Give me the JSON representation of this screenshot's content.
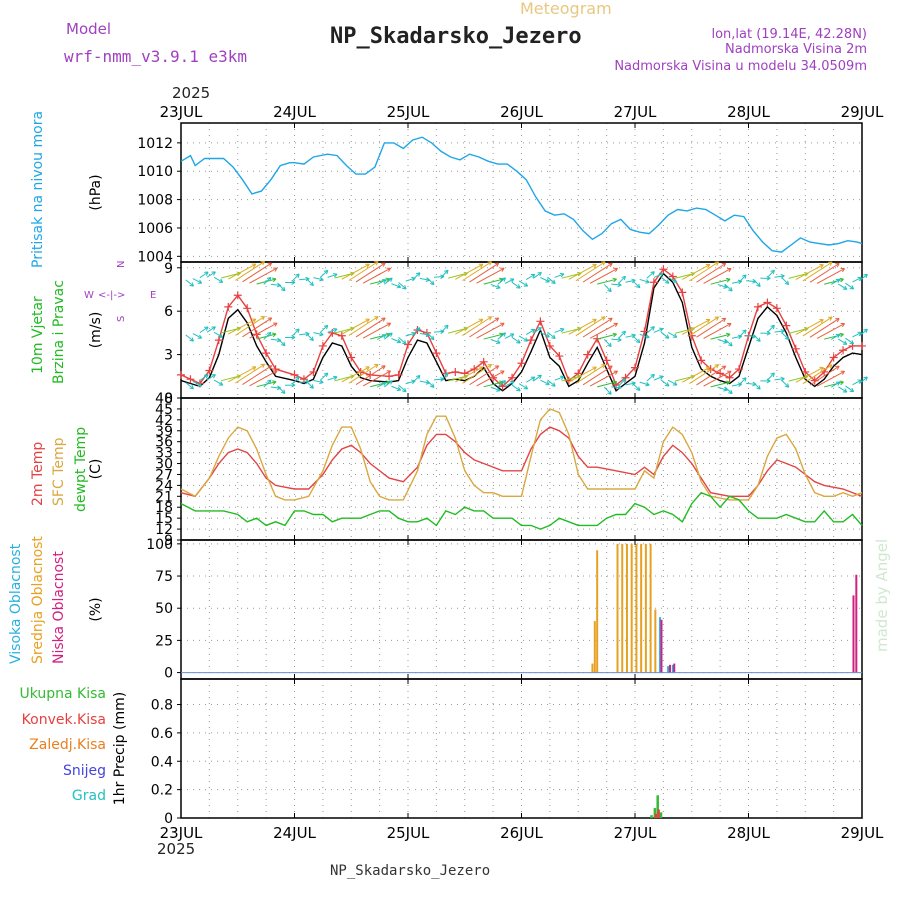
{
  "header": {
    "model_label": "Model",
    "model_name": "wrf-nmm_v3.9.1 e3km",
    "meteogram_label": "Meteogram",
    "station": "NP_Skadarsko_Jezero",
    "lonlat": "lon,lat (19.14E, 42.28N)",
    "elevation": "Nadmorska Visina 2m",
    "model_elevation": "Nadmorska Visina u modelu 34.0509m",
    "footer_station": "NP_Skadarsko_Jezero",
    "watermark": "made by Angel",
    "year": "2025"
  },
  "colors": {
    "pressure": "#1ea6e8",
    "temp2m": "#e24444",
    "sfc": "#d9a840",
    "dewpt": "#22bb22",
    "high_cloud": "#2ab0e0",
    "mid_cloud": "#e8a020",
    "low_cloud": "#d02080",
    "precip_total": "#33bb33",
    "precip_conv": "#e84040",
    "snow": "#4444dd",
    "grad": "#22c0c0"
  },
  "chart_data": [
    {
      "id": "pressure",
      "type": "line",
      "title": "Pritisak na nivou mora",
      "ylabel": "(hPa)",
      "ylim": [
        1003.6,
        1013.4
      ],
      "yticks": [
        1004,
        1006,
        1008,
        1010,
        1012
      ],
      "xlim": [
        0,
        144
      ],
      "series": [
        {
          "name": "Pritisak na nivou mora",
          "color": "#1ea6e8",
          "x": [
            0,
            2,
            3,
            5,
            7,
            9,
            11,
            13,
            15,
            17,
            19,
            21,
            23,
            24,
            26,
            28,
            31,
            33,
            35,
            37,
            39,
            41,
            43,
            45,
            47,
            49,
            51,
            53,
            55,
            57,
            59,
            61,
            63,
            65,
            67,
            69,
            71,
            73,
            75,
            77,
            79,
            81,
            83,
            85,
            87,
            89,
            91,
            93,
            95,
            97,
            99,
            101,
            103,
            105,
            107,
            109,
            111,
            113,
            115,
            117,
            119,
            121,
            123,
            125,
            127,
            129,
            131,
            133,
            135,
            137,
            139,
            141,
            143,
            144
          ],
          "y": [
            1010.7,
            1011.1,
            1010.4,
            1010.9,
            1010.9,
            1010.9,
            1010.3,
            1009.4,
            1008.4,
            1008.6,
            1009.4,
            1010.4,
            1010.6,
            1010.6,
            1010.5,
            1011.0,
            1011.2,
            1011.1,
            1010.4,
            1009.8,
            1009.8,
            1010.3,
            1012.0,
            1012.0,
            1011.6,
            1012.2,
            1012.4,
            1012.0,
            1011.4,
            1011.0,
            1010.8,
            1011.2,
            1011.0,
            1010.7,
            1010.5,
            1010.5,
            1010.0,
            1009.4,
            1008.2,
            1007.2,
            1006.9,
            1007.0,
            1006.6,
            1005.8,
            1005.2,
            1005.6,
            1006.3,
            1006.6,
            1005.9,
            1005.7,
            1005.6,
            1006.2,
            1006.9,
            1007.3,
            1007.2,
            1007.4,
            1007.3,
            1006.9,
            1006.5,
            1006.9,
            1006.8,
            1005.8,
            1005.0,
            1004.4,
            1004.3,
            1004.8,
            1005.3,
            1005.0,
            1004.9,
            1004.8,
            1004.9,
            1005.1,
            1005.0,
            1004.9
          ]
        }
      ]
    },
    {
      "id": "wind",
      "type": "line",
      "title": "10m Vjetar Brzina i Pravac",
      "ylabel": "(m/s)",
      "ylim": [
        0,
        9.4
      ],
      "yticks": [
        0,
        3,
        6,
        9
      ],
      "xlim": [
        0,
        144
      ],
      "direction_legend": [
        "W",
        "E",
        "N",
        "S"
      ],
      "series": [
        {
          "name": "wind speed",
          "color": "#000000",
          "x": [
            0,
            2,
            4,
            6,
            8,
            10,
            12,
            14,
            16,
            18,
            20,
            24,
            26,
            28,
            30,
            32,
            34,
            36,
            38,
            40,
            44,
            46,
            48,
            50,
            52,
            54,
            56,
            58,
            60,
            62,
            64,
            66,
            68,
            70,
            72,
            74,
            76,
            78,
            80,
            82,
            84,
            86,
            88,
            90,
            92,
            94,
            96,
            98,
            100,
            102,
            104,
            106,
            108,
            110,
            112,
            114,
            116,
            118,
            120,
            122,
            124,
            126,
            128,
            130,
            132,
            134,
            136,
            138,
            140,
            142,
            144
          ],
          "y": [
            1.2,
            1.0,
            0.8,
            1.4,
            3.0,
            5.5,
            6.1,
            5.2,
            3.6,
            2.5,
            1.5,
            1.2,
            1.0,
            1.3,
            2.8,
            3.8,
            3.6,
            2.2,
            1.4,
            1.2,
            1.1,
            1.2,
            2.8,
            4.0,
            3.8,
            2.5,
            1.2,
            1.3,
            1.2,
            1.5,
            2.1,
            1.0,
            0.5,
            1.0,
            1.8,
            3.2,
            4.7,
            2.8,
            2.2,
            0.8,
            1.2,
            2.4,
            3.5,
            2.0,
            0.5,
            1.0,
            1.5,
            3.8,
            7.6,
            8.6,
            8.0,
            6.6,
            3.5,
            2.0,
            1.5,
            1.2,
            1.0,
            1.5,
            3.5,
            5.5,
            6.3,
            5.7,
            4.5,
            2.8,
            1.3,
            0.8,
            1.3,
            2.2,
            2.8,
            3.1,
            3.0
          ]
        },
        {
          "name": "gust",
          "color": "#e84040",
          "x": [
            0,
            2,
            4,
            6,
            8,
            10,
            12,
            14,
            16,
            18,
            20,
            24,
            26,
            28,
            30,
            32,
            34,
            36,
            38,
            40,
            44,
            46,
            48,
            50,
            52,
            54,
            56,
            58,
            60,
            62,
            64,
            66,
            68,
            70,
            72,
            74,
            76,
            78,
            80,
            82,
            84,
            86,
            88,
            90,
            92,
            94,
            96,
            98,
            100,
            102,
            104,
            106,
            108,
            110,
            112,
            114,
            116,
            118,
            120,
            122,
            124,
            126,
            128,
            130,
            132,
            134,
            136,
            138,
            140,
            142,
            144
          ],
          "y": [
            1.6,
            1.3,
            1.0,
            1.9,
            4.0,
            6.3,
            7.1,
            6.2,
            4.4,
            3.1,
            2.0,
            1.6,
            1.3,
            1.8,
            3.6,
            4.5,
            4.3,
            2.8,
            1.8,
            1.6,
            1.5,
            1.6,
            3.7,
            4.7,
            4.5,
            3.1,
            1.7,
            1.8,
            1.7,
            2.0,
            2.5,
            1.4,
            0.8,
            1.4,
            2.4,
            4.0,
            5.3,
            3.6,
            2.9,
            1.2,
            1.7,
            3.0,
            4.1,
            2.6,
            0.9,
            1.4,
            2.1,
            4.6,
            8.0,
            8.9,
            8.4,
            7.3,
            4.3,
            2.6,
            2.0,
            1.7,
            1.4,
            2.0,
            4.3,
            6.3,
            6.6,
            6.2,
            5.0,
            3.4,
            1.8,
            1.2,
            1.8,
            2.8,
            3.3,
            3.6,
            3.6
          ]
        }
      ]
    },
    {
      "id": "temperature",
      "type": "line",
      "title": "2m Temp / SFC Temp / dewpt Temp",
      "ylabel": "(C)",
      "ylim": [
        9,
        48
      ],
      "yticks": [
        9,
        12,
        15,
        18,
        21,
        24,
        27,
        30,
        33,
        36,
        39,
        42,
        45,
        48
      ],
      "xlim": [
        0,
        144
      ],
      "series": [
        {
          "name": "2m Temp",
          "color": "#e24444",
          "x": [
            0,
            3,
            6,
            8,
            10,
            12,
            14,
            16,
            18,
            20,
            24,
            27,
            30,
            32,
            34,
            36,
            38,
            40,
            44,
            47,
            50,
            52,
            54,
            56,
            58,
            60,
            62,
            64,
            68,
            72,
            74,
            76,
            78,
            80,
            82,
            84,
            86,
            88,
            92,
            96,
            98,
            100,
            102,
            104,
            106,
            108,
            110,
            112,
            116,
            120,
            122,
            124,
            126,
            128,
            130,
            132,
            134,
            136,
            140,
            144
          ],
          "y": [
            22,
            21,
            26,
            30,
            33,
            34,
            33,
            30,
            26,
            24,
            23,
            23,
            27,
            31,
            34,
            35,
            33,
            30,
            26,
            25,
            29,
            35,
            38,
            38,
            36,
            33,
            31,
            30,
            28,
            28,
            34,
            38,
            40,
            39,
            37,
            32,
            29,
            29,
            28,
            27,
            29,
            27,
            32,
            35,
            33,
            30,
            26,
            22,
            21,
            21,
            24,
            28,
            31,
            30,
            29,
            27,
            25,
            24,
            23,
            21
          ]
        },
        {
          "name": "SFC Temp",
          "color": "#d9a840",
          "x": [
            0,
            3,
            6,
            8,
            10,
            12,
            14,
            16,
            18,
            20,
            22,
            24,
            27,
            30,
            32,
            34,
            36,
            38,
            40,
            42,
            44,
            47,
            50,
            52,
            54,
            56,
            58,
            60,
            62,
            64,
            66,
            68,
            72,
            74,
            76,
            78,
            80,
            82,
            84,
            86,
            88,
            90,
            92,
            96,
            98,
            100,
            102,
            104,
            106,
            108,
            110,
            112,
            116,
            120,
            122,
            124,
            126,
            128,
            130,
            132,
            134,
            136,
            138,
            140,
            142,
            144
          ],
          "y": [
            23,
            21,
            26,
            32,
            37,
            40,
            39,
            34,
            27,
            21,
            20,
            20,
            21,
            28,
            35,
            40,
            40,
            34,
            25,
            21,
            20,
            20,
            28,
            38,
            43,
            43,
            37,
            28,
            24,
            22,
            22,
            21,
            21,
            32,
            42,
            45,
            44,
            38,
            27,
            23,
            23,
            23,
            23,
            23,
            28,
            26,
            36,
            40,
            38,
            33,
            25,
            21,
            20,
            20,
            24,
            32,
            37,
            38,
            34,
            27,
            22,
            21,
            21,
            22,
            21,
            22
          ]
        },
        {
          "name": "dewpt Temp",
          "color": "#22bb22",
          "x": [
            0,
            3,
            6,
            9,
            12,
            14,
            16,
            18,
            20,
            22,
            24,
            26,
            28,
            30,
            32,
            34,
            36,
            38,
            40,
            42,
            44,
            46,
            48,
            50,
            52,
            54,
            56,
            58,
            60,
            62,
            64,
            66,
            68,
            70,
            72,
            74,
            76,
            78,
            80,
            82,
            84,
            86,
            88,
            90,
            92,
            94,
            96,
            98,
            100,
            102,
            104,
            106,
            108,
            110,
            112,
            114,
            116,
            118,
            120,
            122,
            124,
            126,
            128,
            130,
            132,
            134,
            136,
            138,
            140,
            142,
            144
          ],
          "y": [
            19,
            17,
            17,
            17,
            16,
            14,
            15,
            13,
            14,
            13,
            17,
            17,
            16,
            16,
            14,
            15,
            15,
            15,
            16,
            17,
            17,
            15,
            14,
            14,
            15,
            13,
            17,
            16,
            18,
            17,
            17,
            15,
            15,
            15,
            13,
            13,
            12,
            13,
            15,
            14,
            13,
            13,
            13,
            15,
            16,
            16,
            19,
            18,
            16,
            17,
            16,
            14,
            19,
            22,
            21,
            18,
            21,
            20,
            17,
            15,
            15,
            15,
            16,
            15,
            14,
            14,
            17,
            14,
            14,
            16,
            13
          ]
        }
      ]
    },
    {
      "id": "cloud",
      "type": "bar",
      "title": "Visoka Oblacnost / Srednja Oblacnost / Niska Oblacnost",
      "ylabel": "(%)",
      "ylim": [
        -5,
        103
      ],
      "yticks": [
        0,
        25,
        50,
        75,
        100
      ],
      "xlim": [
        0,
        144
      ],
      "series": [
        {
          "name": "Srednja Oblacnost",
          "color": "#e8a020",
          "x": [
            87.0,
            87.5,
            88.0,
            92.3,
            93.3,
            94.3,
            95.3,
            96.3,
            97.3,
            98.3,
            99.3,
            100.3
          ],
          "y": [
            7,
            40,
            95,
            100,
            100,
            100,
            100,
            100,
            100,
            100,
            100,
            49
          ]
        },
        {
          "name": "Visoka Oblacnost",
          "color": "#2ab0e0",
          "x": [
            101.3,
            103.0,
            104.0
          ],
          "y": [
            43,
            5,
            6
          ]
        },
        {
          "name": "Niska Oblacnost",
          "color": "#d02080",
          "x": [
            101.6,
            103.4,
            104.3,
            142.2,
            142.8
          ],
          "y": [
            41,
            6,
            7,
            60,
            76
          ]
        }
      ]
    },
    {
      "id": "precip",
      "type": "bar",
      "title": "1hr Precip",
      "ylabel": "1hr Precip (mm)",
      "ylim": [
        0,
        0.98
      ],
      "yticks": [
        0,
        0.2,
        0.4,
        0.6,
        0.8
      ],
      "xlim": [
        0,
        144
      ],
      "series": [
        {
          "name": "Ukupna Kisa",
          "color": "#33bb33",
          "x": [
            99.5,
            100.2,
            100.8,
            101.5
          ],
          "y": [
            0.02,
            0.07,
            0.16,
            0.04
          ]
        },
        {
          "name": "Konvek.Kisa",
          "color": "#e84040",
          "x": [
            100.4,
            101.0
          ],
          "y": [
            0.03,
            0.06
          ]
        },
        {
          "name": "Zaledj.Kisa",
          "color": "#e88020",
          "x": [],
          "y": []
        },
        {
          "name": "Snijeg",
          "color": "#4444dd",
          "x": [],
          "y": []
        },
        {
          "name": "Grad",
          "color": "#22c0c0",
          "x": [],
          "y": []
        }
      ]
    }
  ],
  "xaxis": {
    "day_labels": [
      "23JUL",
      "24JUL",
      "25JUL",
      "26JUL",
      "27JUL",
      "28JUL",
      "29JUL"
    ],
    "day_hours": [
      0,
      24,
      48,
      72,
      96,
      120,
      144
    ]
  },
  "left_labels": {
    "pressure": "Pritisak na nivou mora",
    "wind1": "10m Vjetar",
    "wind2": "Brzina i Pravac",
    "temp_2m": "2m Temp",
    "temp_sfc": "SFC Temp",
    "temp_dew": "dewpt Temp",
    "cloud_high": "Visoka Oblacnost",
    "cloud_mid": "Srednja Oblacnost",
    "cloud_low": "Niska Oblacnost",
    "precip_total": "Ukupna Kisa",
    "precip_conv": "Konvek.Kisa",
    "precip_frz": "Zaledj.Kisa",
    "precip_snow": "Snijeg",
    "precip_grad": "Grad"
  }
}
